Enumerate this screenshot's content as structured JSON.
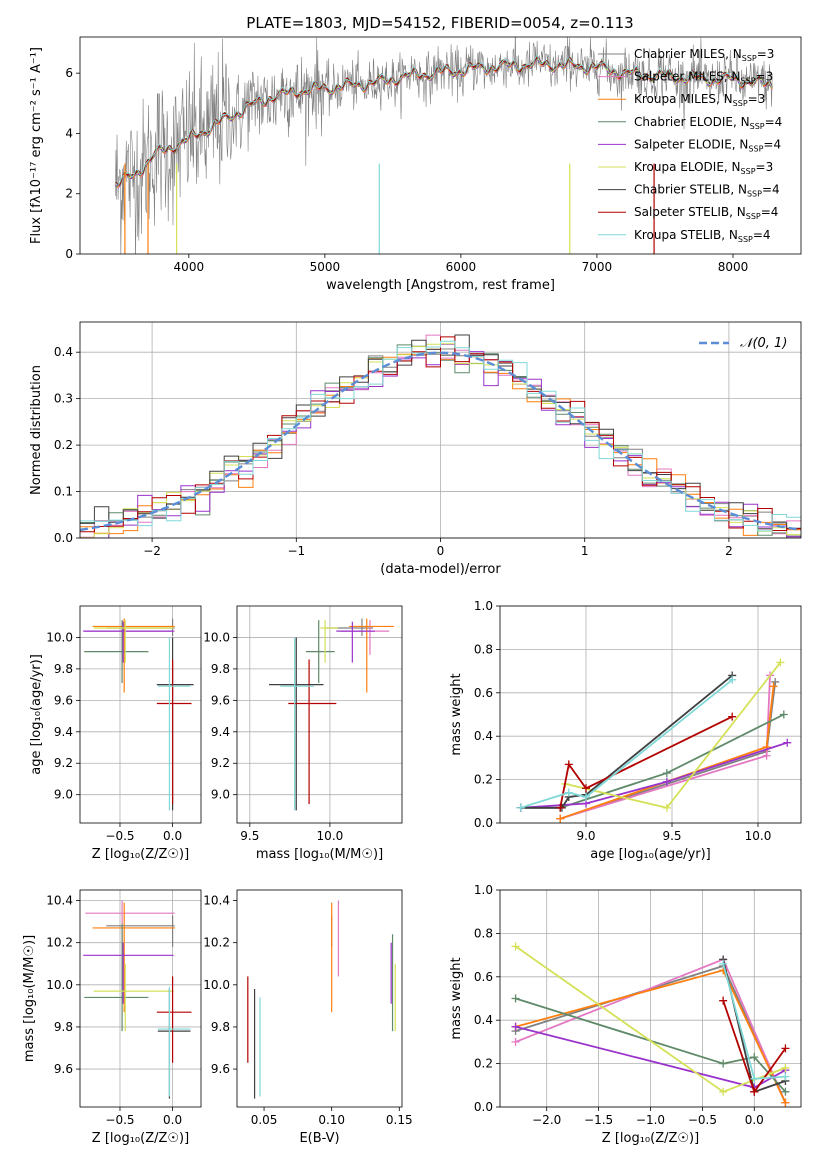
{
  "figure_title": "PLATE=1803, MJD=54152, FIBERID=0054, z=0.113",
  "colors": {
    "Chabrier MILES": "#808080",
    "Salpeter MILES": "#e377c2",
    "Kroupa MILES": "#ff7f0e",
    "Chabrier ELODIE": "#5f8a6a",
    "Salpeter ELODIE": "#9933cc",
    "Kroupa ELODIE": "#d4e157",
    "Chabrier STELIB": "#404040",
    "Salpeter STELIB": "#b30000",
    "Kroupa STELIB": "#80d8d8",
    "normal": "#5b8ed6"
  },
  "chart_data": [
    {
      "id": "spectrum",
      "type": "line",
      "title": "PLATE=1803, MJD=54152, FIBERID=0054, z=0.113",
      "xlabel": "wavelength [Angstrom, rest frame]",
      "ylabel": "Flux [fλ10⁻¹⁷ erg cm⁻² s⁻¹ A⁻¹]",
      "xlim": [
        3200,
        8500
      ],
      "ylim": [
        0,
        7.2
      ],
      "xticks": [
        4000,
        5000,
        6000,
        7000,
        8000
      ],
      "yticks": [
        0,
        2,
        4,
        6
      ],
      "legend_position": "right",
      "continuum": {
        "x": [
          3450,
          3600,
          3750,
          3900,
          4000,
          4200,
          4400,
          4600,
          4800,
          5000,
          5200,
          5400,
          5600,
          5800,
          6000,
          6200,
          6400,
          6600,
          6800,
          7000,
          7200,
          7500,
          7800,
          8000,
          8300
        ],
        "y": [
          2.3,
          2.6,
          3.3,
          3.6,
          3.8,
          4.3,
          4.8,
          5.2,
          5.4,
          5.5,
          5.6,
          5.7,
          5.9,
          6.0,
          6.1,
          6.2,
          6.25,
          6.3,
          6.25,
          6.2,
          6.0,
          5.9,
          5.8,
          5.8,
          5.6
        ]
      },
      "legend": [
        {
          "label": "Chabrier MILES, N",
          "sub": "SSP",
          "suffix": "=3",
          "key": "Chabrier MILES"
        },
        {
          "label": "Salpeter MILES, N",
          "sub": "SSP",
          "suffix": "=3",
          "key": "Salpeter MILES"
        },
        {
          "label": "Kroupa MILES, N",
          "sub": "SSP",
          "suffix": "=3",
          "key": "Kroupa MILES"
        },
        {
          "label": "Chabrier ELODIE, N",
          "sub": "SSP",
          "suffix": "=4",
          "key": "Chabrier ELODIE"
        },
        {
          "label": "Salpeter ELODIE, N",
          "sub": "SSP",
          "suffix": "=4",
          "key": "Salpeter ELODIE"
        },
        {
          "label": "Kroupa ELODIE, N",
          "sub": "SSP",
          "suffix": "=3",
          "key": "Kroupa ELODIE"
        },
        {
          "label": "Chabrier STELIB, N",
          "sub": "SSP",
          "suffix": "=4",
          "key": "Chabrier STELIB"
        },
        {
          "label": "Salpeter STELIB, N",
          "sub": "SSP",
          "suffix": "=4",
          "key": "Salpeter STELIB"
        },
        {
          "label": "Kroupa STELIB, N",
          "sub": "SSP",
          "suffix": "=4",
          "key": "Kroupa STELIB"
        }
      ]
    },
    {
      "id": "residuals",
      "type": "line",
      "xlabel": "(data-model)/error",
      "ylabel": "Normed distribution",
      "xlim": [
        -2.5,
        2.5
      ],
      "ylim": [
        0,
        0.465
      ],
      "xticks": [
        -2,
        -1,
        0,
        1,
        2
      ],
      "yticks": [
        0.0,
        0.1,
        0.2,
        0.3,
        0.4
      ],
      "grid": true,
      "legend_position": "top-right",
      "legend": "𝒩(0, 1)",
      "bin_width": 0.1
    },
    {
      "id": "age_vs_Z",
      "type": "scatter",
      "xlabel": "Z [log₁₀(Z/Z☉)]",
      "ylabel": "age  [log₁₀(age/yr)]",
      "xlim": [
        -0.88,
        0.27
      ],
      "ylim": [
        8.82,
        10.2
      ],
      "xticks": [
        -0.5,
        0.0
      ],
      "yticks": [
        9.0,
        9.2,
        9.4,
        9.6,
        9.8,
        10.0
      ],
      "grid": true,
      "points": [
        {
          "key": "Chabrier MILES",
          "x": 0.0,
          "y": 10.06,
          "xerr": [
            0.63,
            0.02
          ],
          "yerr": [
            0.05,
            0.06
          ]
        },
        {
          "key": "Salpeter MILES",
          "x": -0.48,
          "y": 10.04,
          "xerr": [
            0.35,
            0.5
          ],
          "yerr": [
            0.15,
            0.07
          ]
        },
        {
          "key": "Kroupa MILES",
          "x": -0.46,
          "y": 10.07,
          "xerr": [
            0.3,
            0.48
          ],
          "yerr": [
            0.42,
            0.05
          ]
        },
        {
          "key": "Chabrier ELODIE",
          "x": -0.48,
          "y": 9.91,
          "xerr": [
            0.36,
            0.25
          ],
          "yerr": [
            0.2,
            0.2
          ]
        },
        {
          "key": "Salpeter ELODIE",
          "x": -0.47,
          "y": 10.04,
          "xerr": [
            0.38,
            0.48
          ],
          "yerr": [
            0.2,
            0.06
          ]
        },
        {
          "key": "Kroupa ELODIE",
          "x": -0.45,
          "y": 10.06,
          "xerr": [
            0.3,
            0.46
          ],
          "yerr": [
            0.22,
            0.05
          ]
        },
        {
          "key": "Chabrier STELIB",
          "x": 0.0,
          "y": 9.7,
          "xerr": [
            0.15,
            0.2
          ],
          "yerr": [
            0.8,
            0.3
          ]
        },
        {
          "key": "Salpeter STELIB",
          "x": 0.0,
          "y": 9.58,
          "xerr": [
            0.15,
            0.18
          ],
          "yerr": [
            0.64,
            0.28
          ]
        },
        {
          "key": "Kroupa STELIB",
          "x": -0.03,
          "y": 9.69,
          "xerr": [
            0.11,
            0.2
          ],
          "yerr": [
            0.79,
            0.31
          ]
        }
      ]
    },
    {
      "id": "age_vs_mass",
      "type": "scatter",
      "xlabel": "mass [log₁₀(M/M☉)]",
      "xlim": [
        9.42,
        10.45
      ],
      "ylim": [
        8.82,
        10.2
      ],
      "xticks": [
        9.5,
        10.0
      ],
      "yticks": [
        9.0,
        9.2,
        9.4,
        9.6,
        9.8,
        10.0
      ],
      "grid": true,
      "points": [
        {
          "key": "Chabrier MILES",
          "x": 10.2,
          "y": 10.06,
          "xerr": [
            0.23,
            0.07
          ],
          "yerr": [
            0.05,
            0.06
          ]
        },
        {
          "key": "Salpeter MILES",
          "x": 10.25,
          "y": 10.04,
          "xerr": [
            0.18,
            0.12
          ],
          "yerr": [
            0.15,
            0.07
          ]
        },
        {
          "key": "Kroupa MILES",
          "x": 10.23,
          "y": 10.07,
          "xerr": [
            0.11,
            0.17
          ],
          "yerr": [
            0.42,
            0.05
          ]
        },
        {
          "key": "Chabrier ELODIE",
          "x": 9.93,
          "y": 9.91,
          "xerr": [
            0.08,
            0.1
          ],
          "yerr": [
            0.2,
            0.2
          ]
        },
        {
          "key": "Salpeter ELODIE",
          "x": 10.14,
          "y": 10.04,
          "xerr": [
            0.1,
            0.14
          ],
          "yerr": [
            0.2,
            0.06
          ]
        },
        {
          "key": "Kroupa ELODIE",
          "x": 9.97,
          "y": 10.06,
          "xerr": [
            0.03,
            0.08
          ],
          "yerr": [
            0.22,
            0.05
          ]
        },
        {
          "key": "Chabrier STELIB",
          "x": 9.79,
          "y": 9.7,
          "xerr": [
            0.17,
            0.17
          ],
          "yerr": [
            0.8,
            0.3
          ]
        },
        {
          "key": "Salpeter STELIB",
          "x": 9.87,
          "y": 9.58,
          "xerr": [
            0.13,
            0.17
          ],
          "yerr": [
            0.64,
            0.28
          ]
        },
        {
          "key": "Kroupa STELIB",
          "x": 9.78,
          "y": 9.69,
          "xerr": [
            0.09,
            0.12
          ],
          "yerr": [
            0.79,
            0.31
          ]
        }
      ]
    },
    {
      "id": "weight_vs_age",
      "type": "line",
      "xlabel": "age  [log₁₀(age/yr)]",
      "ylabel": "mass weight",
      "xlim": [
        8.5,
        10.25
      ],
      "ylim": [
        0,
        1.0
      ],
      "xticks": [
        9.0,
        9.5,
        10.0
      ],
      "yticks": [
        0.0,
        0.2,
        0.4,
        0.6,
        0.8,
        1.0
      ],
      "grid": true,
      "series": [
        {
          "key": "Chabrier MILES",
          "x": [
            8.85,
            10.05,
            10.1
          ],
          "y": [
            0.02,
            0.33,
            0.65
          ]
        },
        {
          "key": "Salpeter MILES",
          "x": [
            8.85,
            10.05,
            10.07
          ],
          "y": [
            0.02,
            0.31,
            0.68
          ]
        },
        {
          "key": "Kroupa MILES",
          "x": [
            8.85,
            10.05,
            10.09
          ],
          "y": [
            0.02,
            0.35,
            0.63
          ]
        },
        {
          "key": "Chabrier ELODIE",
          "x": [
            8.62,
            8.85,
            9.47,
            10.15
          ],
          "y": [
            0.07,
            0.07,
            0.23,
            0.5
          ]
        },
        {
          "key": "Salpeter ELODIE",
          "x": [
            8.62,
            9.0,
            9.47,
            10.17
          ],
          "y": [
            0.07,
            0.09,
            0.19,
            0.37
          ]
        },
        {
          "key": "Kroupa ELODIE",
          "x": [
            8.88,
            9.47,
            10.13
          ],
          "y": [
            0.18,
            0.07,
            0.74
          ]
        },
        {
          "key": "Chabrier STELIB",
          "x": [
            8.62,
            8.86,
            8.9,
            9.0,
            9.85
          ],
          "y": [
            0.07,
            0.07,
            0.12,
            0.13,
            0.68
          ]
        },
        {
          "key": "Salpeter STELIB",
          "x": [
            8.85,
            8.9,
            9.0,
            9.85
          ],
          "y": [
            0.07,
            0.27,
            0.16,
            0.49
          ]
        },
        {
          "key": "Kroupa STELIB",
          "x": [
            8.62,
            8.9,
            9.0,
            9.85
          ],
          "y": [
            0.07,
            0.14,
            0.12,
            0.66
          ]
        }
      ]
    },
    {
      "id": "mass_vs_Z",
      "type": "scatter",
      "xlabel": "Z [log₁₀(Z/Z☉)]",
      "ylabel": "mass [log₁₀(M/M☉)]",
      "xlim": [
        -0.88,
        0.27
      ],
      "ylim": [
        9.42,
        10.45
      ],
      "xticks": [
        -0.5,
        0.0
      ],
      "yticks": [
        9.6,
        9.8,
        10.0,
        10.2,
        10.4
      ],
      "grid": true,
      "points": [
        {
          "key": "Chabrier MILES",
          "x": 0.0,
          "y": 10.28,
          "xerr": [
            0.63,
            0.02
          ],
          "yerr": [
            0.1,
            0.05
          ]
        },
        {
          "key": "Salpeter MILES",
          "x": -0.48,
          "y": 10.34,
          "xerr": [
            0.35,
            0.5
          ],
          "yerr": [
            0.2,
            0.06
          ]
        },
        {
          "key": "Kroupa MILES",
          "x": -0.46,
          "y": 10.27,
          "xerr": [
            0.3,
            0.48
          ],
          "yerr": [
            0.4,
            0.12
          ]
        },
        {
          "key": "Chabrier ELODIE",
          "x": -0.48,
          "y": 9.94,
          "xerr": [
            0.36,
            0.25
          ],
          "yerr": [
            0.16,
            0.35
          ]
        },
        {
          "key": "Salpeter ELODIE",
          "x": -0.47,
          "y": 10.14,
          "xerr": [
            0.38,
            0.48
          ],
          "yerr": [
            0.23,
            0.06
          ]
        },
        {
          "key": "Kroupa ELODIE",
          "x": -0.45,
          "y": 9.97,
          "xerr": [
            0.3,
            0.46
          ],
          "yerr": [
            0.19,
            0.13
          ]
        },
        {
          "key": "Chabrier STELIB",
          "x": -0.03,
          "y": 9.78,
          "xerr": [
            0.11,
            0.2
          ],
          "yerr": [
            0.32,
            0.2
          ]
        },
        {
          "key": "Salpeter STELIB",
          "x": 0.0,
          "y": 9.87,
          "xerr": [
            0.15,
            0.18
          ],
          "yerr": [
            0.24,
            0.17
          ]
        },
        {
          "key": "Kroupa STELIB",
          "x": -0.03,
          "y": 9.79,
          "xerr": [
            0.11,
            0.2
          ],
          "yerr": [
            0.32,
            0.2
          ]
        }
      ]
    },
    {
      "id": "mass_vs_ebv",
      "type": "scatter",
      "xlabel": "E(B-V)",
      "xlim": [
        0.03,
        0.152
      ],
      "ylim": [
        9.42,
        10.45
      ],
      "xticks": [
        0.05,
        0.1,
        0.15
      ],
      "yticks": [
        9.6,
        9.8,
        10.0,
        10.2,
        10.4
      ],
      "grid": false,
      "points": [
        {
          "key": "Chabrier MILES",
          "x": 0.1,
          "y": 10.28,
          "yerr": [
            0.1,
            0.05
          ]
        },
        {
          "key": "Salpeter MILES",
          "x": 0.105,
          "y": 10.34,
          "yerr": [
            0.3,
            0.06
          ]
        },
        {
          "key": "Kroupa MILES",
          "x": 0.1,
          "y": 10.27,
          "yerr": [
            0.4,
            0.12
          ]
        },
        {
          "key": "Chabrier ELODIE",
          "x": 0.145,
          "y": 9.94,
          "yerr": [
            0.16,
            0.3
          ]
        },
        {
          "key": "Salpeter ELODIE",
          "x": 0.144,
          "y": 10.14,
          "yerr": [
            0.23,
            0.06
          ]
        },
        {
          "key": "Kroupa ELODIE",
          "x": 0.147,
          "y": 9.97,
          "yerr": [
            0.19,
            0.13
          ]
        },
        {
          "key": "Chabrier STELIB",
          "x": 0.043,
          "y": 9.78,
          "yerr": [
            0.32,
            0.2
          ]
        },
        {
          "key": "Salpeter STELIB",
          "x": 0.038,
          "y": 9.87,
          "yerr": [
            0.24,
            0.17
          ]
        },
        {
          "key": "Kroupa STELIB",
          "x": 0.047,
          "y": 9.79,
          "yerr": [
            0.32,
            0.15
          ]
        }
      ]
    },
    {
      "id": "weight_vs_Z",
      "type": "line",
      "xlabel": "Z [log₁₀(Z/Z☉)]",
      "ylabel": "mass weight",
      "xlim": [
        -2.45,
        0.45
      ],
      "ylim": [
        0,
        1.0
      ],
      "xticks": [
        -2.0,
        -1.5,
        -1.0,
        -0.5,
        0.0
      ],
      "yticks": [
        0.0,
        0.2,
        0.4,
        0.6,
        0.8,
        1.0
      ],
      "grid": true,
      "series": [
        {
          "key": "Chabrier MILES",
          "x": [
            -2.3,
            -0.3,
            0.3
          ],
          "y": [
            0.35,
            0.65,
            0.02
          ]
        },
        {
          "key": "Salpeter MILES",
          "x": [
            -2.3,
            -0.3,
            0.3
          ],
          "y": [
            0.3,
            0.68,
            0.02
          ]
        },
        {
          "key": "Kroupa MILES",
          "x": [
            -2.3,
            -0.3,
            0.3
          ],
          "y": [
            0.37,
            0.63,
            0.02
          ]
        },
        {
          "key": "Chabrier ELODIE",
          "x": [
            -2.3,
            -0.3,
            0.0,
            0.3
          ],
          "y": [
            0.5,
            0.2,
            0.23,
            0.07
          ]
        },
        {
          "key": "Salpeter ELODIE",
          "x": [
            -2.3,
            0.0,
            0.3
          ],
          "y": [
            0.37,
            0.09,
            0.17
          ]
        },
        {
          "key": "Kroupa ELODIE",
          "x": [
            -2.3,
            -0.3,
            0.3
          ],
          "y": [
            0.74,
            0.07,
            0.18
          ]
        },
        {
          "key": "Chabrier STELIB",
          "x": [
            -0.3,
            0.0,
            0.3
          ],
          "y": [
            0.68,
            0.07,
            0.12
          ]
        },
        {
          "key": "Salpeter STELIB",
          "x": [
            -0.3,
            0.0,
            0.3
          ],
          "y": [
            0.49,
            0.07,
            0.27
          ]
        },
        {
          "key": "Kroupa STELIB",
          "x": [
            -0.3,
            0.0,
            0.3
          ],
          "y": [
            0.66,
            0.13,
            0.14
          ]
        }
      ]
    }
  ]
}
